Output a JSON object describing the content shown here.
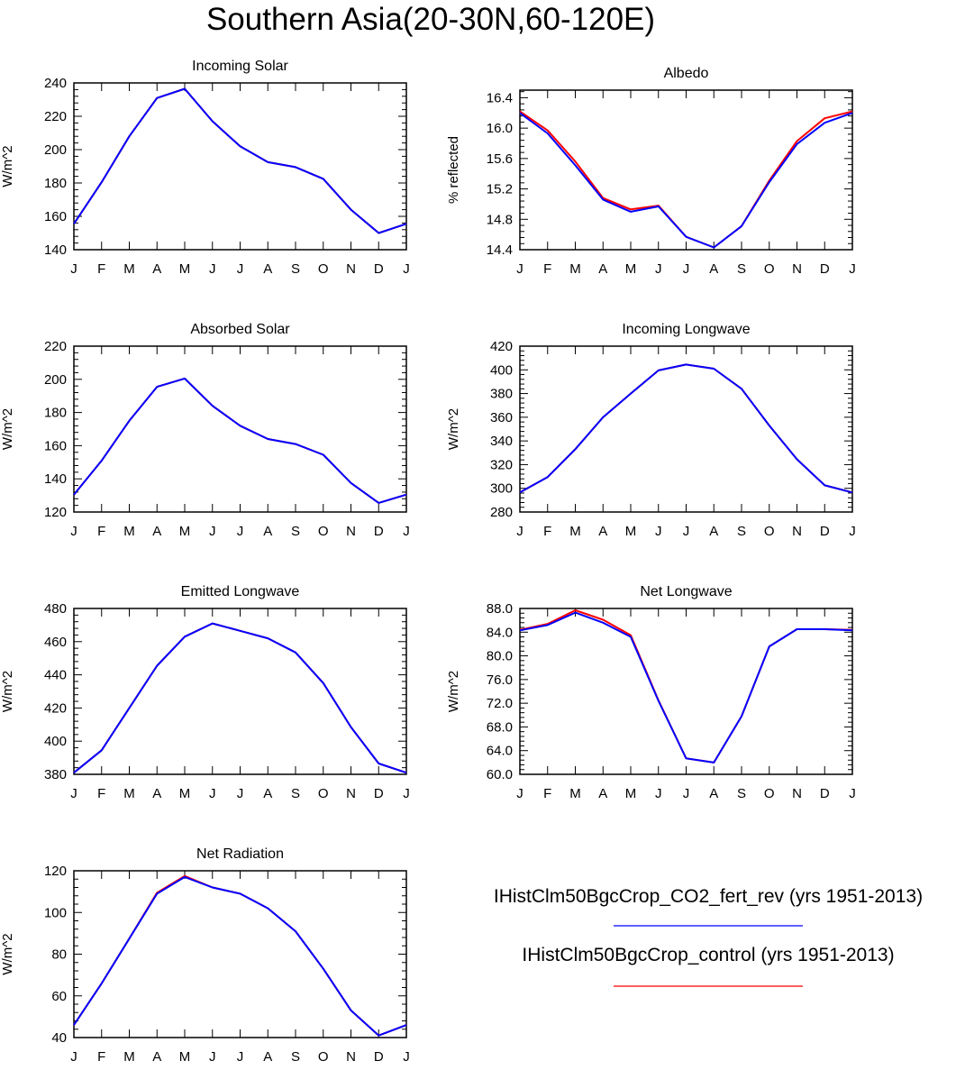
{
  "figure_title": "Southern Asia(20-30N,60-120E)",
  "months": [
    "J",
    "F",
    "M",
    "A",
    "M",
    "J",
    "J",
    "A",
    "S",
    "O",
    "N",
    "D",
    "J"
  ],
  "legend": [
    {
      "label": "IHistClm50BgcCrop_CO2_fert_rev (yrs 1951-2013)",
      "color": "#0000ff"
    },
    {
      "label": "IHistClm50BgcCrop_control (yrs 1951-2013)",
      "color": "#ff0000"
    }
  ],
  "chart_data": [
    {
      "type": "line",
      "title": "Incoming Solar",
      "ylabel": "W/m^2",
      "ylim": [
        140,
        240
      ],
      "yticks": [
        140,
        160,
        180,
        200,
        220,
        240
      ],
      "ytick_labels": [
        "140",
        "160",
        "180",
        "200",
        "220",
        "240"
      ],
      "categories": [
        "J",
        "F",
        "M",
        "A",
        "M",
        "J",
        "J",
        "A",
        "S",
        "O",
        "N",
        "D",
        "J"
      ],
      "series": [
        {
          "name": "IHistClm50BgcCrop_control (yrs 1951-2013)",
          "color": "#ff0000",
          "values": [
            155.5,
            180.5,
            208,
            231,
            236.5,
            217,
            202,
            192.5,
            189.5,
            182.5,
            164,
            150,
            155.5
          ]
        },
        {
          "name": "IHistClm50BgcCrop_CO2_fert_rev (yrs 1951-2013)",
          "color": "#0000ff",
          "values": [
            155.5,
            180.5,
            208,
            231,
            236.5,
            217,
            202,
            192.5,
            189.5,
            182.5,
            164,
            150,
            155.5
          ]
        }
      ]
    },
    {
      "type": "line",
      "title": "Albedo",
      "ylabel": "% reflected",
      "ylim": [
        14.4,
        16.5
      ],
      "yticks": [
        14.4,
        14.8,
        15.2,
        15.6,
        16.0,
        16.4
      ],
      "ytick_labels": [
        "14.4",
        "14.8",
        "15.2",
        "15.6",
        "16.0",
        "16.4"
      ],
      "categories": [
        "J",
        "F",
        "M",
        "A",
        "M",
        "J",
        "J",
        "A",
        "S",
        "O",
        "N",
        "D",
        "J"
      ],
      "series": [
        {
          "name": "IHistClm50BgcCrop_control (yrs 1951-2013)",
          "color": "#ff0000",
          "values": [
            16.22,
            15.97,
            15.56,
            15.08,
            14.93,
            14.98,
            14.57,
            14.43,
            14.71,
            15.31,
            15.83,
            16.13,
            16.22
          ]
        },
        {
          "name": "IHistClm50BgcCrop_CO2_fert_rev (yrs 1951-2013)",
          "color": "#0000ff",
          "values": [
            16.2,
            15.93,
            15.51,
            15.06,
            14.9,
            14.97,
            14.57,
            14.43,
            14.71,
            15.29,
            15.79,
            16.07,
            16.2
          ]
        }
      ]
    },
    {
      "type": "line",
      "title": "Absorbed Solar",
      "ylabel": "W/m^2",
      "ylim": [
        120,
        220
      ],
      "yticks": [
        120,
        140,
        160,
        180,
        200,
        220
      ],
      "ytick_labels": [
        "120",
        "140",
        "160",
        "180",
        "200",
        "220"
      ],
      "categories": [
        "J",
        "F",
        "M",
        "A",
        "M",
        "J",
        "J",
        "A",
        "S",
        "O",
        "N",
        "D",
        "J"
      ],
      "series": [
        {
          "name": "IHistClm50BgcCrop_control (yrs 1951-2013)",
          "color": "#ff0000",
          "values": [
            130.5,
            151,
            175,
            195.5,
            200.5,
            184,
            172,
            164,
            161,
            154.5,
            137.5,
            125.5,
            130.5
          ]
        },
        {
          "name": "IHistClm50BgcCrop_CO2_fert_rev (yrs 1951-2013)",
          "color": "#0000ff",
          "values": [
            130.5,
            151,
            175,
            195.5,
            200.5,
            184,
            172,
            164,
            161,
            154.5,
            137.5,
            125.5,
            130.5
          ]
        }
      ]
    },
    {
      "type": "line",
      "title": "Incoming Longwave",
      "ylabel": "W/m^2",
      "ylim": [
        280,
        420
      ],
      "yticks": [
        280,
        300,
        320,
        340,
        360,
        380,
        400,
        420
      ],
      "ytick_labels": [
        "280",
        "300",
        "320",
        "340",
        "360",
        "380",
        "400",
        "420"
      ],
      "categories": [
        "J",
        "F",
        "M",
        "A",
        "M",
        "J",
        "J",
        "A",
        "S",
        "O",
        "N",
        "D",
        "J"
      ],
      "series": [
        {
          "name": "IHistClm50BgcCrop_control (yrs 1951-2013)",
          "color": "#ff0000",
          "values": [
            296.5,
            309.5,
            333,
            360,
            380,
            399.5,
            404.5,
            401,
            384,
            353,
            324.5,
            302.5,
            296.5
          ]
        },
        {
          "name": "IHistClm50BgcCrop_CO2_fert_rev (yrs 1951-2013)",
          "color": "#0000ff",
          "values": [
            296.5,
            309.5,
            333,
            360,
            380,
            399.5,
            404.5,
            401,
            384,
            353,
            324.5,
            302.5,
            296.5
          ]
        }
      ]
    },
    {
      "type": "line",
      "title": "Emitted Longwave",
      "ylabel": "W/m^2",
      "ylim": [
        380,
        480
      ],
      "yticks": [
        380,
        400,
        420,
        440,
        460,
        480
      ],
      "ytick_labels": [
        "380",
        "400",
        "420",
        "440",
        "460",
        "480"
      ],
      "categories": [
        "J",
        "F",
        "M",
        "A",
        "M",
        "J",
        "J",
        "A",
        "S",
        "O",
        "N",
        "D",
        "J"
      ],
      "series": [
        {
          "name": "IHistClm50BgcCrop_control (yrs 1951-2013)",
          "color": "#ff0000",
          "values": [
            381,
            394.5,
            420,
            445.5,
            463,
            471,
            466.5,
            462,
            453.5,
            435,
            408.5,
            386.5,
            381
          ]
        },
        {
          "name": "IHistClm50BgcCrop_CO2_fert_rev (yrs 1951-2013)",
          "color": "#0000ff",
          "values": [
            381,
            394.5,
            420,
            445.5,
            463,
            471,
            466.5,
            462,
            453.5,
            435,
            408.5,
            386.5,
            381
          ]
        }
      ]
    },
    {
      "type": "line",
      "title": "Net Longwave",
      "ylabel": "W/m^2",
      "ylim": [
        60,
        88
      ],
      "yticks": [
        60,
        64,
        68,
        72,
        76,
        80,
        84,
        88
      ],
      "ytick_labels": [
        "60.0",
        "64.0",
        "68.0",
        "72.0",
        "76.0",
        "80.0",
        "84.0",
        "88.0"
      ],
      "categories": [
        "J",
        "F",
        "M",
        "A",
        "M",
        "J",
        "J",
        "A",
        "S",
        "O",
        "N",
        "D",
        "J"
      ],
      "series": [
        {
          "name": "IHistClm50BgcCrop_control (yrs 1951-2013)",
          "color": "#ff0000",
          "values": [
            84.4,
            85.4,
            87.7,
            86.1,
            83.5,
            72.5,
            62.7,
            62.0,
            69.8,
            81.6,
            84.5,
            84.5,
            84.4
          ]
        },
        {
          "name": "IHistClm50BgcCrop_CO2_fert_rev (yrs 1951-2013)",
          "color": "#0000ff",
          "values": [
            84.3,
            85.2,
            87.3,
            85.6,
            83.2,
            72.4,
            62.7,
            62.0,
            69.8,
            81.6,
            84.5,
            84.5,
            84.3
          ]
        }
      ]
    },
    {
      "type": "line",
      "title": "Net Radiation",
      "ylabel": "W/m^2",
      "ylim": [
        40,
        120
      ],
      "yticks": [
        40,
        60,
        80,
        100,
        120
      ],
      "ytick_labels": [
        "40",
        "60",
        "80",
        "100",
        "120"
      ],
      "categories": [
        "J",
        "F",
        "M",
        "A",
        "M",
        "J",
        "J",
        "A",
        "S",
        "O",
        "N",
        "D",
        "J"
      ],
      "series": [
        {
          "name": "IHistClm50BgcCrop_control (yrs 1951-2013)",
          "color": "#ff0000",
          "values": [
            46,
            66,
            87.5,
            109.5,
            117.5,
            112,
            109,
            102,
            91,
            73,
            53,
            41,
            46
          ]
        },
        {
          "name": "IHistClm50BgcCrop_CO2_fert_rev (yrs 1951-2013)",
          "color": "#0000ff",
          "values": [
            46,
            66,
            87.5,
            109,
            117,
            112,
            109,
            102,
            91,
            73,
            53,
            41,
            46
          ]
        }
      ]
    }
  ]
}
